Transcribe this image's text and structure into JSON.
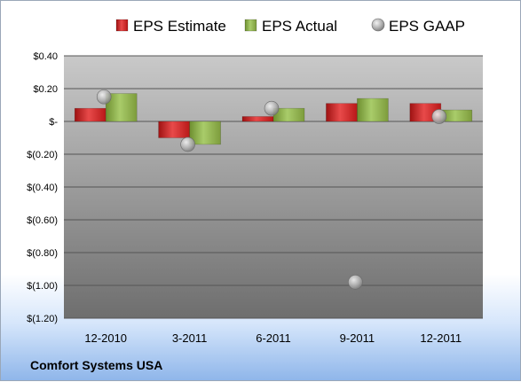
{
  "chart_data": {
    "type": "bar",
    "categories": [
      "12-2010",
      "3-2011",
      "6-2011",
      "9-2011",
      "12-2011"
    ],
    "series": [
      {
        "name": "EPS Estimate",
        "kind": "bar",
        "color": "#cc1f1f",
        "values": [
          0.08,
          -0.1,
          0.03,
          0.11,
          0.11
        ]
      },
      {
        "name": "EPS Actual",
        "kind": "bar",
        "color": "#8db04a",
        "values": [
          0.17,
          -0.14,
          0.08,
          0.14,
          0.07
        ]
      },
      {
        "name": "EPS GAAP",
        "kind": "marker",
        "color": "#b5b5b5",
        "values": [
          0.15,
          -0.14,
          0.08,
          -0.98,
          0.03
        ]
      }
    ],
    "ylim": [
      -1.2,
      0.4
    ],
    "yticks": [
      0.4,
      0.2,
      0,
      -0.2,
      -0.4,
      -0.6,
      -0.8,
      -1.0,
      -1.2
    ],
    "ytick_labels": [
      "$0.40",
      "$0.20",
      "$-",
      "$(0.20)",
      "$(0.40)",
      "$(0.60)",
      "$(0.80)",
      "$(1.00)",
      "$(1.20)"
    ],
    "grid": true,
    "legend_position": "top"
  },
  "footer": {
    "company": "Comfort Systems USA"
  }
}
